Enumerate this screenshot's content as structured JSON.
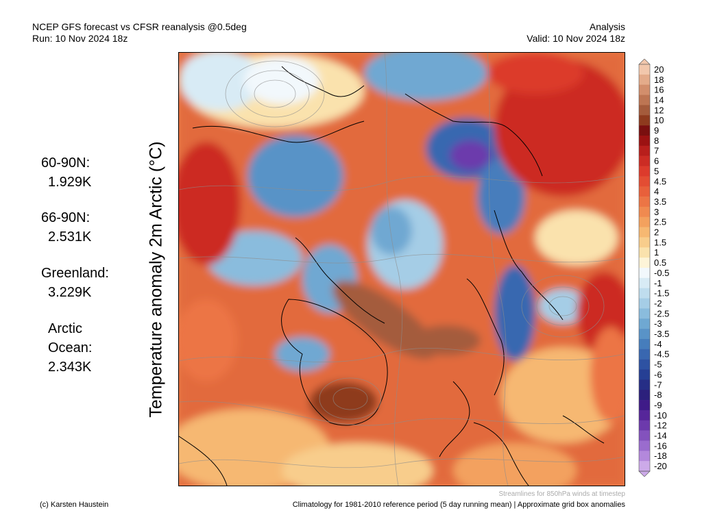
{
  "header": {
    "title_line1": "NCEP GFS forecast vs CFSR reanalysis @0.5deg",
    "title_line2": "Run: 10 Nov 2024 18z",
    "right_line1": "Analysis",
    "right_line2": "Valid: 10 Nov 2024 18z"
  },
  "vertical_title": "Temperature anomaly 2m Arctic (°C)",
  "stats": [
    {
      "label": "60-90N:",
      "value": "1.929K"
    },
    {
      "label": "66-90N:",
      "value": "2.531K"
    },
    {
      "label": "Greenland:",
      "value": "3.229K"
    },
    {
      "label": "Arctic",
      "label2": "Ocean:",
      "value": "2.343K"
    }
  ],
  "colorbar": {
    "labels": [
      "20",
      "18",
      "16",
      "14",
      "12",
      "10",
      "9",
      "8",
      "7",
      "6",
      "5",
      "4.5",
      "4",
      "3.5",
      "3",
      "2.5",
      "2",
      "1.5",
      "1",
      "0.5",
      "-0.5",
      "-1",
      "-1.5",
      "-2",
      "-2.5",
      "-3",
      "-3.5",
      "-4",
      "-4.5",
      "-5",
      "-6",
      "-7",
      "-8",
      "-9",
      "-10",
      "-12",
      "-14",
      "-16",
      "-18",
      "-20"
    ],
    "colors": [
      "#f2c7ac",
      "#e4ab8a",
      "#d28e6c",
      "#bd7553",
      "#a45b3c",
      "#8e3a1e",
      "#7a0f0f",
      "#9c1212",
      "#b81f1c",
      "#cc2c24",
      "#dc3b2c",
      "#e34d33",
      "#e8603b",
      "#ec7545",
      "#f08a50",
      "#f3a15e",
      "#f6b872",
      "#f8cd8c",
      "#fae2ad",
      "#fdf4d8",
      "#f2f8fc",
      "#d8ebf5",
      "#bfddee",
      "#a5cde6",
      "#8abcdd",
      "#6fa8d2",
      "#5993c7",
      "#467dbc",
      "#3967b0",
      "#2e52a2",
      "#263f94",
      "#262e86",
      "#2c207c",
      "#3f1b88",
      "#56269a",
      "#6c3aac",
      "#8352bd",
      "#9a6cce",
      "#b388dc",
      "#ccaae9"
    ]
  },
  "footer": {
    "left": "(c) Karsten Haustein",
    "note": "Streamlines for 850hPa winds at timestep",
    "right": "Climatology for 1981-2010 reference period (5 day running mean) | Approximate grid box anomalies"
  }
}
